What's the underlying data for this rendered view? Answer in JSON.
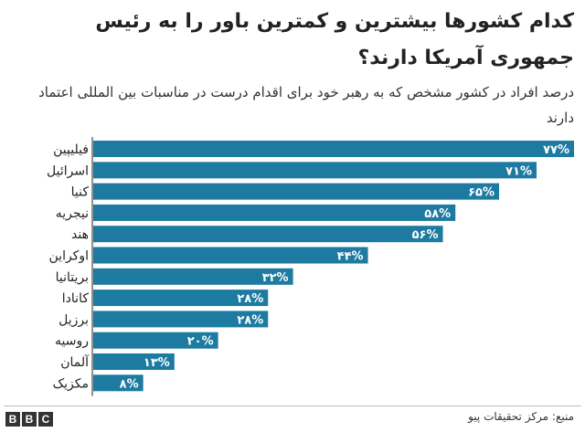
{
  "title": "کدام کشورها بیشترین و کمترین باور را به رئیس جمهوری آمریکا دارند؟",
  "subtitle": "درصد افراد در کشور مشخص که به رهبر خود برای اقدام درست در مناسبات بین المللی اعتماد دارند",
  "source": "منبع: مرکز تحقیقات پیو",
  "logo": [
    "B",
    "B",
    "C"
  ],
  "colors": {
    "bar": "#1d7aa1",
    "label": "#ffffff",
    "axis": "#222222"
  },
  "chart_data": {
    "type": "bar",
    "orientation": "horizontal",
    "categories": [
      "فیلیپین",
      "اسرائیل",
      "کنیا",
      "نیجریه",
      "هند",
      "اوکراین",
      "بریتانیا",
      "کانادا",
      "برزیل",
      "روسیه",
      "آلمان",
      "مکزیک"
    ],
    "values": [
      77,
      71,
      65,
      58,
      56,
      44,
      32,
      28,
      28,
      20,
      13,
      8
    ],
    "value_labels": [
      "۷۷%",
      "۷۱%",
      "۶۵%",
      "۵۸%",
      "۵۶%",
      "۴۴%",
      "۳۲%",
      "۲۸%",
      "۲۸%",
      "۲۰%",
      "۱۳%",
      "۸%"
    ],
    "xlim": [
      0,
      77
    ],
    "grid": false,
    "legend": "none"
  }
}
